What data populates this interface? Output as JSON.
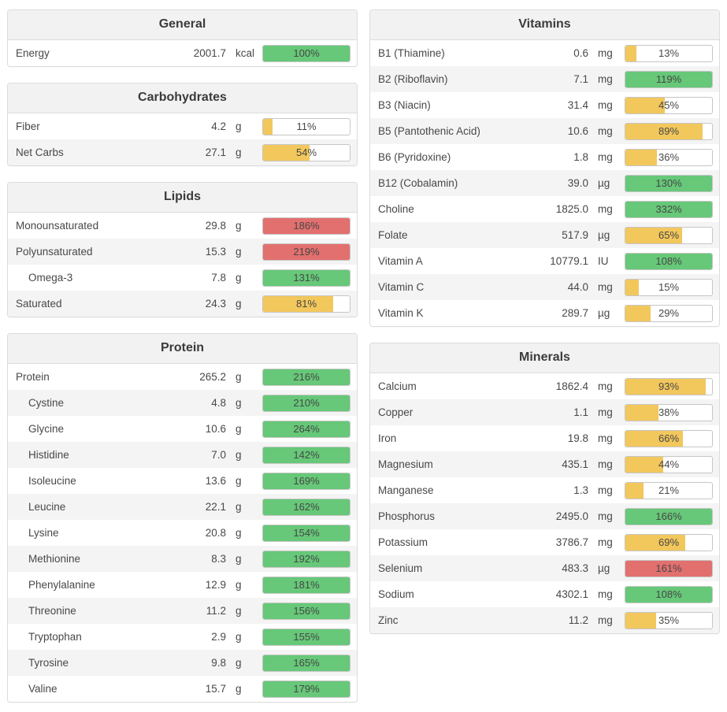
{
  "colors": {
    "green": "#66C878",
    "yellow": "#F2C75C",
    "red": "#E2706E"
  },
  "panels": [
    {
      "id": "general",
      "title": "General",
      "column": "left",
      "rows": [
        {
          "name": "Energy",
          "value": "2001.7",
          "unit": "kcal",
          "percent": 100,
          "percent_label": "100%",
          "status": "green",
          "indent": false
        }
      ]
    },
    {
      "id": "carbohydrates",
      "title": "Carbohydrates",
      "column": "left",
      "rows": [
        {
          "name": "Fiber",
          "value": "4.2",
          "unit": "g",
          "percent": 11,
          "percent_label": "11%",
          "status": "yellow",
          "indent": false
        },
        {
          "name": "Net Carbs",
          "value": "27.1",
          "unit": "g",
          "percent": 54,
          "percent_label": "54%",
          "status": "yellow",
          "indent": false
        }
      ]
    },
    {
      "id": "lipids",
      "title": "Lipids",
      "column": "left",
      "rows": [
        {
          "name": "Monounsaturated",
          "value": "29.8",
          "unit": "g",
          "percent": 186,
          "percent_label": "186%",
          "status": "red",
          "indent": false
        },
        {
          "name": "Polyunsaturated",
          "value": "15.3",
          "unit": "g",
          "percent": 219,
          "percent_label": "219%",
          "status": "red",
          "indent": false
        },
        {
          "name": "Omega-3",
          "value": "7.8",
          "unit": "g",
          "percent": 131,
          "percent_label": "131%",
          "status": "green",
          "indent": true
        },
        {
          "name": "Saturated",
          "value": "24.3",
          "unit": "g",
          "percent": 81,
          "percent_label": "81%",
          "status": "yellow",
          "indent": false
        }
      ]
    },
    {
      "id": "protein",
      "title": "Protein",
      "column": "left",
      "rows": [
        {
          "name": "Protein",
          "value": "265.2",
          "unit": "g",
          "percent": 216,
          "percent_label": "216%",
          "status": "green",
          "indent": false
        },
        {
          "name": "Cystine",
          "value": "4.8",
          "unit": "g",
          "percent": 210,
          "percent_label": "210%",
          "status": "green",
          "indent": true
        },
        {
          "name": "Glycine",
          "value": "10.6",
          "unit": "g",
          "percent": 264,
          "percent_label": "264%",
          "status": "green",
          "indent": true
        },
        {
          "name": "Histidine",
          "value": "7.0",
          "unit": "g",
          "percent": 142,
          "percent_label": "142%",
          "status": "green",
          "indent": true
        },
        {
          "name": "Isoleucine",
          "value": "13.6",
          "unit": "g",
          "percent": 169,
          "percent_label": "169%",
          "status": "green",
          "indent": true
        },
        {
          "name": "Leucine",
          "value": "22.1",
          "unit": "g",
          "percent": 162,
          "percent_label": "162%",
          "status": "green",
          "indent": true
        },
        {
          "name": "Lysine",
          "value": "20.8",
          "unit": "g",
          "percent": 154,
          "percent_label": "154%",
          "status": "green",
          "indent": true
        },
        {
          "name": "Methionine",
          "value": "8.3",
          "unit": "g",
          "percent": 192,
          "percent_label": "192%",
          "status": "green",
          "indent": true
        },
        {
          "name": "Phenylalanine",
          "value": "12.9",
          "unit": "g",
          "percent": 181,
          "percent_label": "181%",
          "status": "green",
          "indent": true
        },
        {
          "name": "Threonine",
          "value": "11.2",
          "unit": "g",
          "percent": 156,
          "percent_label": "156%",
          "status": "green",
          "indent": true
        },
        {
          "name": "Tryptophan",
          "value": "2.9",
          "unit": "g",
          "percent": 155,
          "percent_label": "155%",
          "status": "green",
          "indent": true
        },
        {
          "name": "Tyrosine",
          "value": "9.8",
          "unit": "g",
          "percent": 165,
          "percent_label": "165%",
          "status": "green",
          "indent": true
        },
        {
          "name": "Valine",
          "value": "15.7",
          "unit": "g",
          "percent": 179,
          "percent_label": "179%",
          "status": "green",
          "indent": true
        }
      ]
    },
    {
      "id": "vitamins",
      "title": "Vitamins",
      "column": "right",
      "rows": [
        {
          "name": "B1 (Thiamine)",
          "value": "0.6",
          "unit": "mg",
          "percent": 13,
          "percent_label": "13%",
          "status": "yellow",
          "indent": false
        },
        {
          "name": "B2 (Riboflavin)",
          "value": "7.1",
          "unit": "mg",
          "percent": 119,
          "percent_label": "119%",
          "status": "green",
          "indent": false
        },
        {
          "name": "B3 (Niacin)",
          "value": "31.4",
          "unit": "mg",
          "percent": 45,
          "percent_label": "45%",
          "status": "yellow",
          "indent": false
        },
        {
          "name": "B5 (Pantothenic Acid)",
          "value": "10.6",
          "unit": "mg",
          "percent": 89,
          "percent_label": "89%",
          "status": "yellow",
          "indent": false
        },
        {
          "name": "B6 (Pyridoxine)",
          "value": "1.8",
          "unit": "mg",
          "percent": 36,
          "percent_label": "36%",
          "status": "yellow",
          "indent": false
        },
        {
          "name": "B12 (Cobalamin)",
          "value": "39.0",
          "unit": "µg",
          "percent": 130,
          "percent_label": "130%",
          "status": "green",
          "indent": false
        },
        {
          "name": "Choline",
          "value": "1825.0",
          "unit": "mg",
          "percent": 332,
          "percent_label": "332%",
          "status": "green",
          "indent": false
        },
        {
          "name": "Folate",
          "value": "517.9",
          "unit": "µg",
          "percent": 65,
          "percent_label": "65%",
          "status": "yellow",
          "indent": false
        },
        {
          "name": "Vitamin A",
          "value": "10779.1",
          "unit": "IU",
          "percent": 108,
          "percent_label": "108%",
          "status": "green",
          "indent": false
        },
        {
          "name": "Vitamin C",
          "value": "44.0",
          "unit": "mg",
          "percent": 15,
          "percent_label": "15%",
          "status": "yellow",
          "indent": false
        },
        {
          "name": "Vitamin K",
          "value": "289.7",
          "unit": "µg",
          "percent": 29,
          "percent_label": "29%",
          "status": "yellow",
          "indent": false
        }
      ]
    },
    {
      "id": "minerals",
      "title": "Minerals",
      "column": "right",
      "rows": [
        {
          "name": "Calcium",
          "value": "1862.4",
          "unit": "mg",
          "percent": 93,
          "percent_label": "93%",
          "status": "yellow",
          "indent": false
        },
        {
          "name": "Copper",
          "value": "1.1",
          "unit": "mg",
          "percent": 38,
          "percent_label": "38%",
          "status": "yellow",
          "indent": false
        },
        {
          "name": "Iron",
          "value": "19.8",
          "unit": "mg",
          "percent": 66,
          "percent_label": "66%",
          "status": "yellow",
          "indent": false
        },
        {
          "name": "Magnesium",
          "value": "435.1",
          "unit": "mg",
          "percent": 44,
          "percent_label": "44%",
          "status": "yellow",
          "indent": false
        },
        {
          "name": "Manganese",
          "value": "1.3",
          "unit": "mg",
          "percent": 21,
          "percent_label": "21%",
          "status": "yellow",
          "indent": false
        },
        {
          "name": "Phosphorus",
          "value": "2495.0",
          "unit": "mg",
          "percent": 166,
          "percent_label": "166%",
          "status": "green",
          "indent": false
        },
        {
          "name": "Potassium",
          "value": "3786.7",
          "unit": "mg",
          "percent": 69,
          "percent_label": "69%",
          "status": "yellow",
          "indent": false
        },
        {
          "name": "Selenium",
          "value": "483.3",
          "unit": "µg",
          "percent": 161,
          "percent_label": "161%",
          "status": "red",
          "indent": false
        },
        {
          "name": "Sodium",
          "value": "4302.1",
          "unit": "mg",
          "percent": 108,
          "percent_label": "108%",
          "status": "green",
          "indent": false
        },
        {
          "name": "Zinc",
          "value": "11.2",
          "unit": "mg",
          "percent": 35,
          "percent_label": "35%",
          "status": "yellow",
          "indent": false
        }
      ]
    }
  ]
}
